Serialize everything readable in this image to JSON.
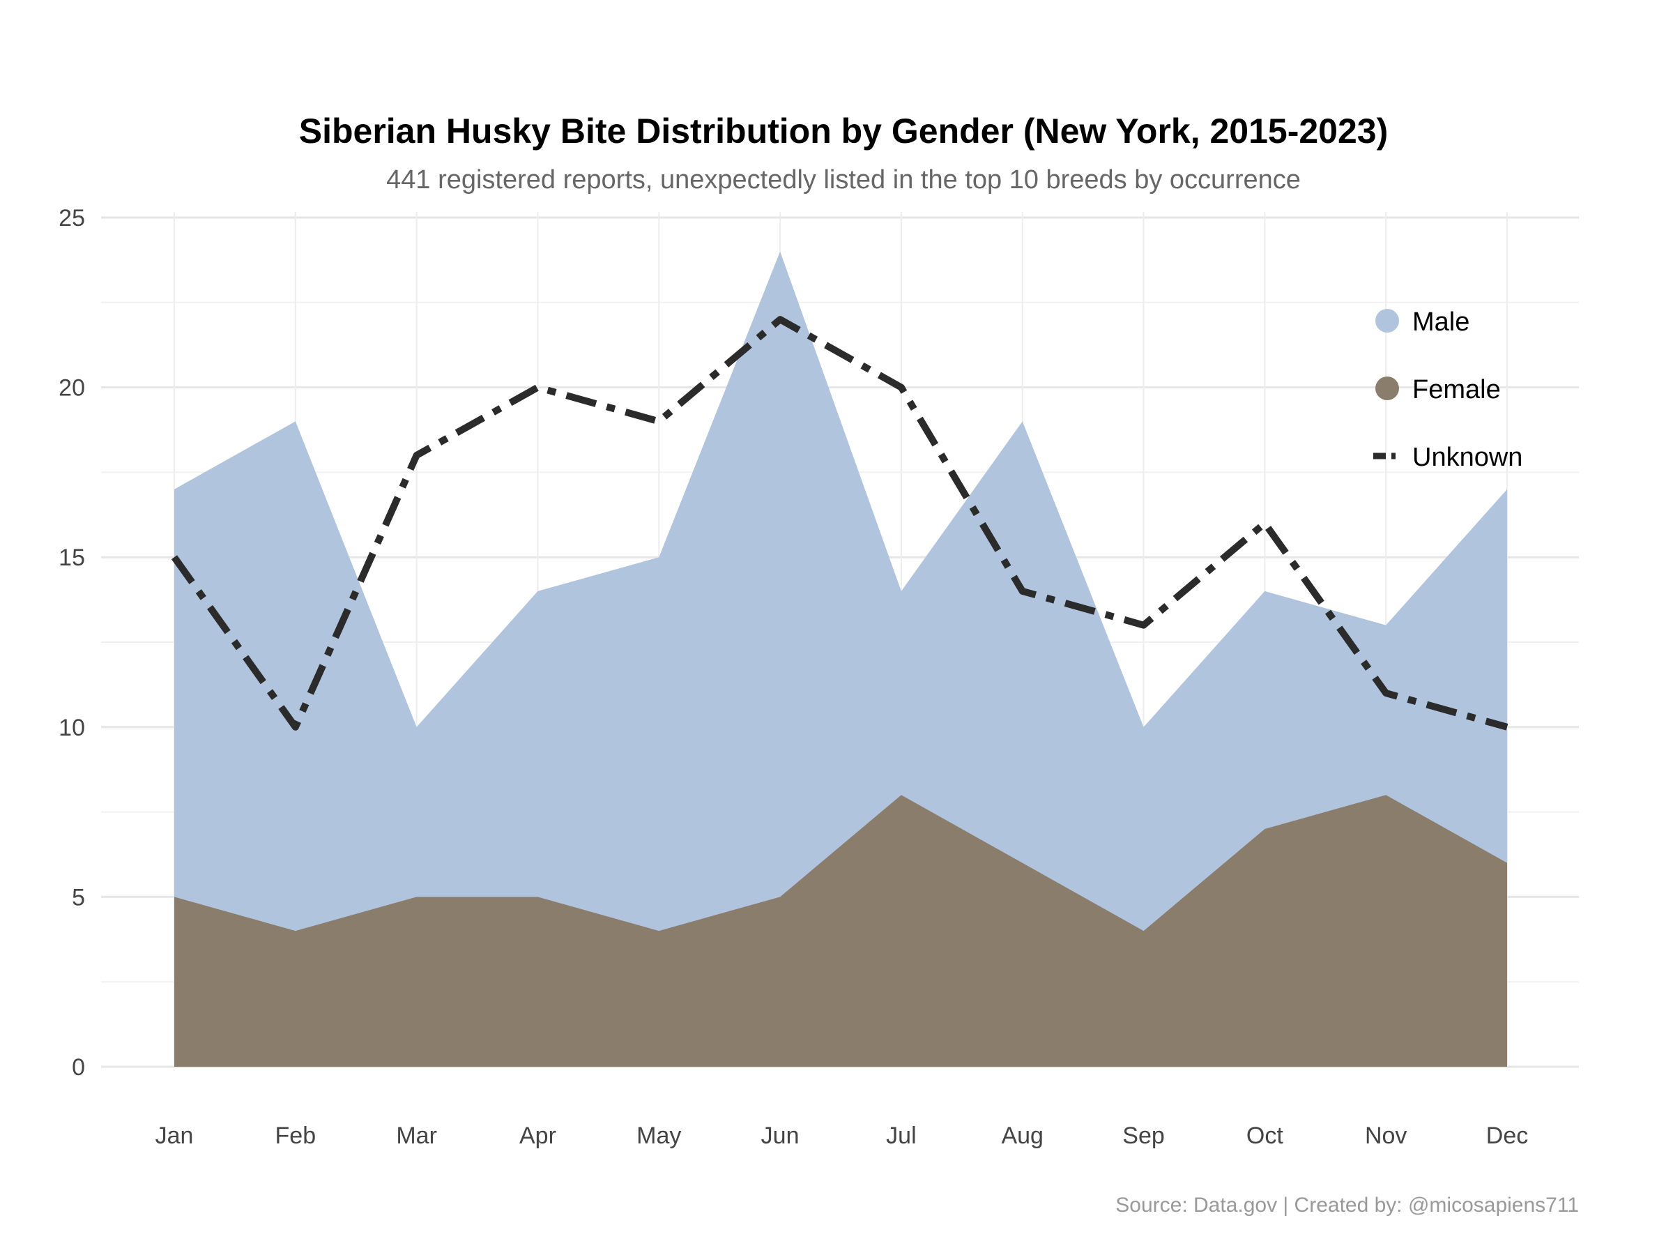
{
  "chart_data": {
    "type": "area",
    "title": "Siberian Husky Bite Distribution by Gender (New York, 2015-2023)",
    "subtitle": "441 registered reports, unexpectedly listed in the top 10 breeds by occurrence",
    "caption": "Source: Data.gov | Created by: @micosapiens711",
    "xlabel": "",
    "ylabel": "",
    "categories": [
      "Jan",
      "Feb",
      "Mar",
      "Apr",
      "May",
      "Jun",
      "Jul",
      "Aug",
      "Sep",
      "Oct",
      "Nov",
      "Dec"
    ],
    "ylim": [
      0,
      25
    ],
    "yticks": [
      "0",
      "5",
      "10",
      "15",
      "20",
      "25"
    ],
    "grid": true,
    "legend_position": "top-right",
    "series": [
      {
        "name": "Male",
        "kind": "area",
        "color": "#b0c4de",
        "values": [
          17,
          19,
          10,
          14,
          15,
          24,
          14,
          19,
          10,
          14,
          13,
          17
        ]
      },
      {
        "name": "Female",
        "kind": "area",
        "color": "#8b7d6b",
        "values": [
          5,
          4,
          5,
          5,
          4,
          5,
          8,
          6,
          4,
          7,
          8,
          6
        ]
      },
      {
        "name": "Unknown",
        "kind": "line",
        "style": "dashdot",
        "color": "#2b2b2b",
        "values": [
          15,
          10,
          18,
          20,
          19,
          22,
          20,
          14,
          13,
          16,
          11,
          10
        ]
      }
    ]
  }
}
